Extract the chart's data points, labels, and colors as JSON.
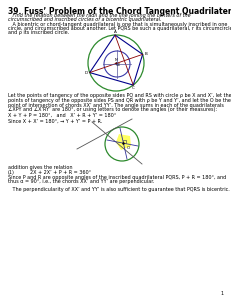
{
  "title": "39. Fuss’ Problem of the Chord Tangent Quadrilateral",
  "subtitle_line1": "   Find the relation between the radii and the line joining the centers of the",
  "subtitle_line2": "circumscribed and inscribed circles of a bicentric quadrilateral.",
  "para1_line1": "   A bicentric or chord-tangent quadrilateral is one that is simultaneously inscribed in one",
  "para1_line2": "circle, and circumscribed about another. Let PQRS be such a quadrilateral, r its circumcircle",
  "para1_line3": "and ρ its inscribed circle.",
  "para2_line1": "Let the points of tangency of the opposite sides PQ and RS with circle ρ be X and X’, let the",
  "para2_line2": "points of tangency of the opposite sides PS and QR with ρ be Y and Y’, and let the O be the",
  "para2_line3": "point of intersection of chords XX’ and YY’. The angle sums in each of the quadrilaterals",
  "para2_line4": "∠XPY and ∠X’RY’ are 180°, or using letters to denote the angles (or their measures):",
  "formula1": "X + Y + P = 180°,   and   X’ + R + Y’ = 180°",
  "since1": "Since X + X’ = 180°, → Y + Y’ = P + R.",
  "para3_line1": "addition gives the relation",
  "formula2_label": "(1)",
  "formula2_eq": "2X + 2X’ + P + R = 360°",
  "para3_line2": "Since P and R are opposite angles of the inscribed quadrilateral PQRS, P + R = 180°, and",
  "para3_line3": "thus α = 90°, i.e., the chords XX’ and YY’ are perpendicular.",
  "note": "   The perpendicularity of XX’ and YY’ is also sufficient to guarantee that PQRS is bicentric.",
  "page_num": "1",
  "bg_color": "#ffffff"
}
